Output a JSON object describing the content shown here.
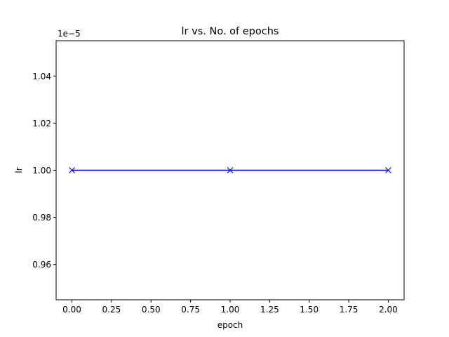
{
  "chart_data": {
    "type": "line",
    "title": "lr vs. No. of epochs",
    "xlabel": "epoch",
    "ylabel": "lr",
    "y_offset_label": "1e−5",
    "x": [
      0,
      1,
      2
    ],
    "series": [
      {
        "values": [
          1e-05,
          1e-05,
          1e-05
        ],
        "color": "#0000ff",
        "marker": "x"
      }
    ],
    "xlim": [
      -0.1,
      2.1
    ],
    "ylim": [
      9.45e-06,
      1.055e-05
    ],
    "x_ticks": [
      0.0,
      0.25,
      0.5,
      0.75,
      1.0,
      1.25,
      1.5,
      1.75,
      2.0
    ],
    "x_tick_labels": [
      "0.00",
      "0.25",
      "0.50",
      "0.75",
      "1.00",
      "1.25",
      "1.50",
      "1.75",
      "2.00"
    ],
    "y_ticks": [
      9.6e-06,
      9.8e-06,
      1e-05,
      1.02e-05,
      1.04e-05
    ],
    "y_tick_labels": [
      "0.96",
      "0.98",
      "1.00",
      "1.02",
      "1.04"
    ],
    "grid": false,
    "legend": "none"
  }
}
